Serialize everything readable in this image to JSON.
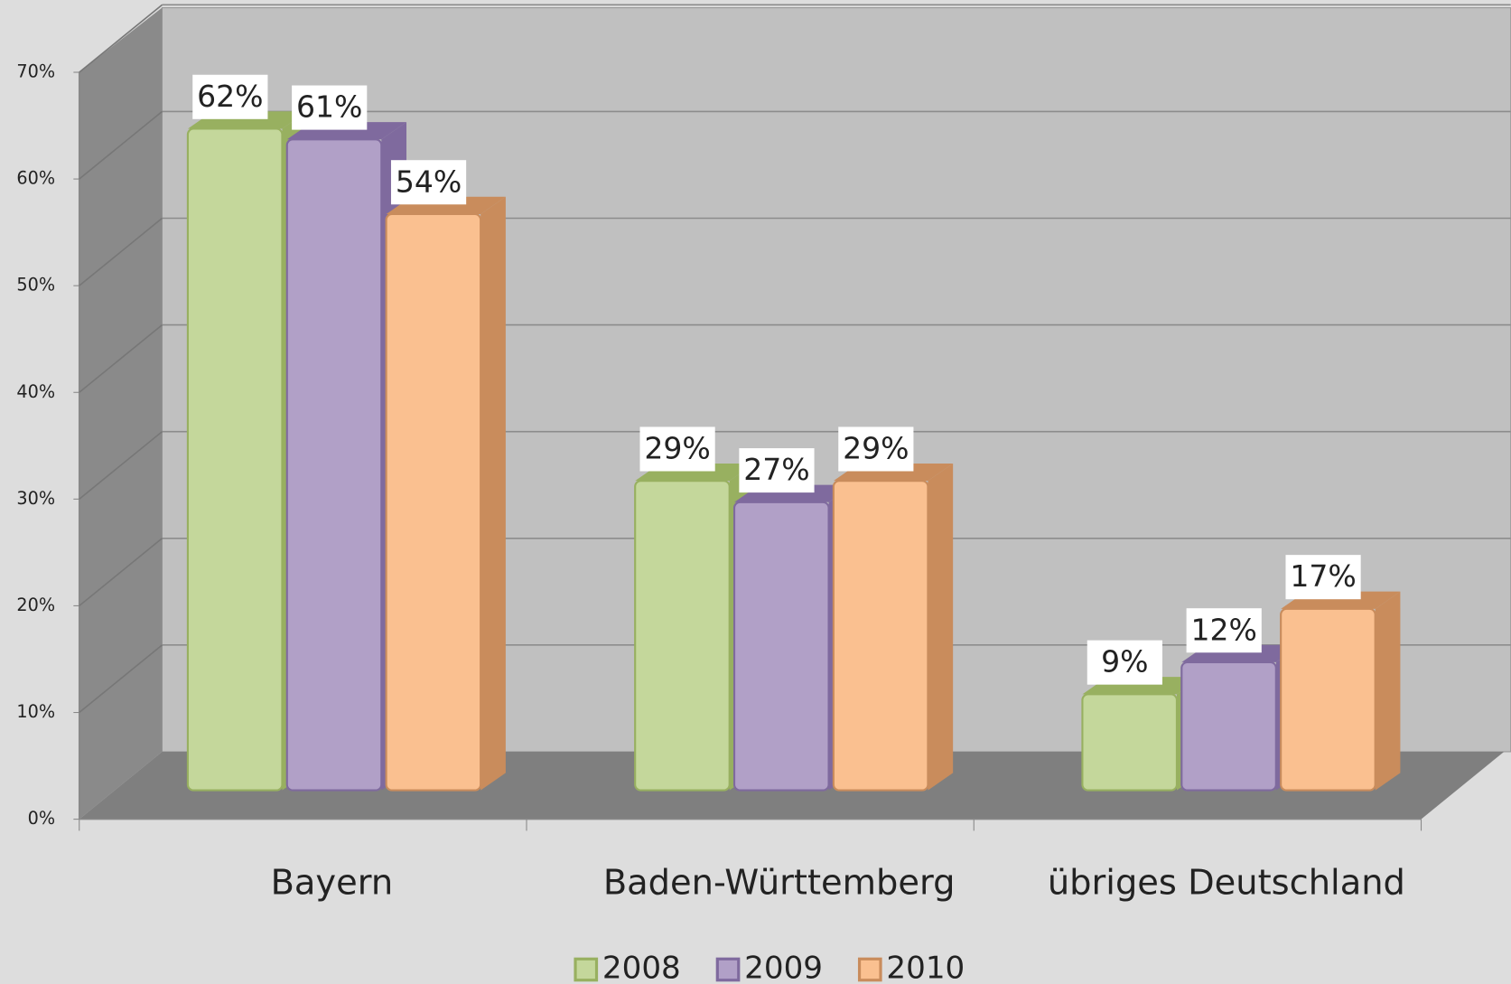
{
  "chart_data": {
    "type": "bar3d",
    "categories": [
      "Bayern",
      "Baden-Württemberg",
      "übriges Deutschland"
    ],
    "series": [
      {
        "name": "2008",
        "color": "#c4d79b",
        "side": "#98b060",
        "values": [
          62,
          29,
          9
        ],
        "value_labels": [
          "62%",
          "29%",
          "9%"
        ]
      },
      {
        "name": "2009",
        "color": "#b1a0c7",
        "side": "#7f6a9e",
        "values": [
          61,
          27,
          12
        ],
        "value_labels": [
          "61%",
          "27%",
          "12%"
        ]
      },
      {
        "name": "2010",
        "color": "#fac090",
        "side": "#c98c5c",
        "values": [
          54,
          29,
          17
        ],
        "value_labels": [
          "54%",
          "29%",
          "17%"
        ]
      }
    ],
    "ylim": [
      0,
      70
    ],
    "yticks": [
      {
        "value": 0,
        "label": "0%"
      },
      {
        "value": 10,
        "label": "10%"
      },
      {
        "value": 20,
        "label": "20%"
      },
      {
        "value": 30,
        "label": "30%"
      },
      {
        "value": 40,
        "label": "40%"
      },
      {
        "value": 50,
        "label": "50%"
      },
      {
        "value": 60,
        "label": "60%"
      },
      {
        "value": 70,
        "label": "70%"
      }
    ],
    "grid": true,
    "legend": "bottom"
  }
}
